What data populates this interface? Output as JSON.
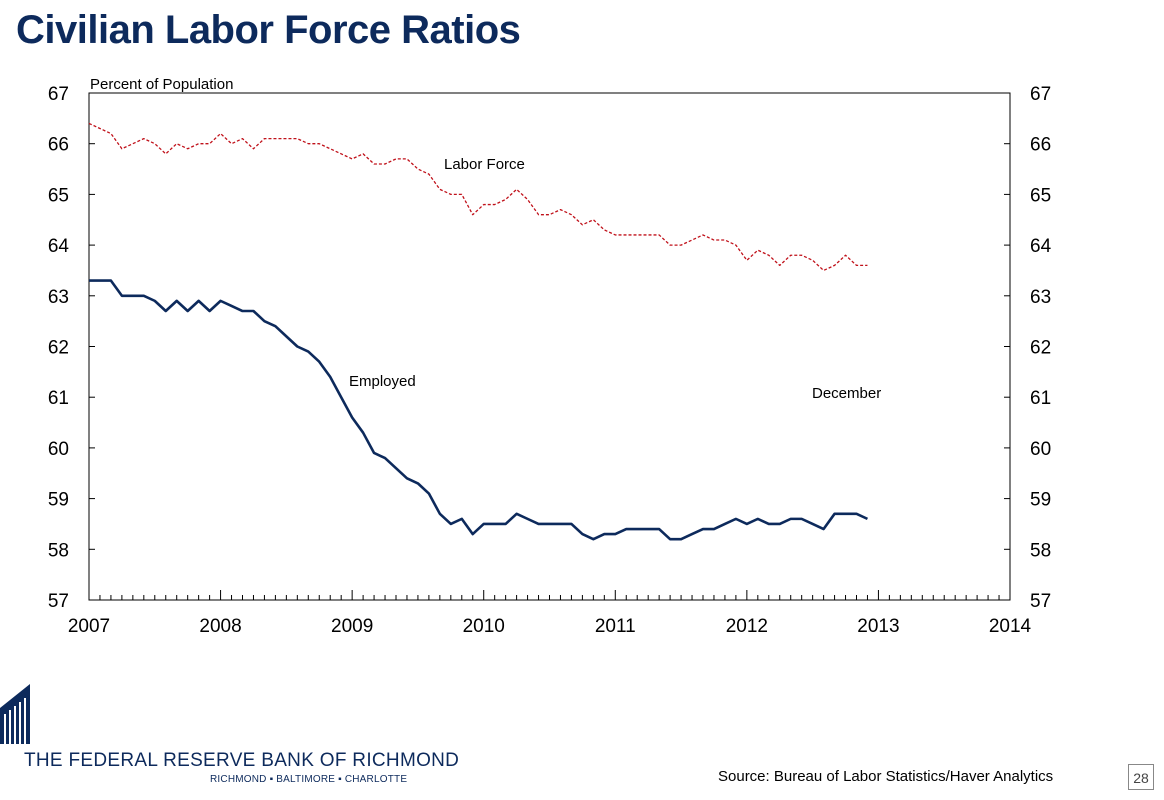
{
  "slide": {
    "title": "Civilian Labor Force Ratios",
    "source": "Source: Bureau of Labor Statistics/Haver Analytics",
    "page_number": "28",
    "logo": {
      "name": "THE FEDERAL RESERVE BANK OF RICHMOND",
      "cities": "RICHMOND ▪ BALTIMORE ▪ CHARLOTTE"
    }
  },
  "chart_data": {
    "type": "line",
    "title": "",
    "ylabel": "Percent of Population",
    "xlim": [
      2007,
      2014
    ],
    "ylim": [
      57,
      67
    ],
    "x_ticks": [
      "2007",
      "2008",
      "2009",
      "2010",
      "2011",
      "2012",
      "2013",
      "2014"
    ],
    "y_ticks": [
      "57",
      "58",
      "59",
      "60",
      "61",
      "62",
      "63",
      "64",
      "65",
      "66",
      "67"
    ],
    "annotations": {
      "labor_force": "Labor Force",
      "employed": "Employed",
      "december": "December"
    },
    "colors": {
      "labor_force": "#c0111a",
      "employed": "#0d2a5c",
      "title": "#0d2a5c"
    },
    "series": [
      {
        "key": "labor_force",
        "style": "dashed",
        "start": "2007-01",
        "frequency": "monthly",
        "values": [
          66.4,
          66.3,
          66.2,
          65.9,
          66.0,
          66.1,
          66.0,
          65.8,
          66.0,
          65.9,
          66.0,
          66.0,
          66.2,
          66.0,
          66.1,
          65.9,
          66.1,
          66.1,
          66.1,
          66.1,
          66.0,
          66.0,
          65.9,
          65.8,
          65.7,
          65.8,
          65.6,
          65.6,
          65.7,
          65.7,
          65.5,
          65.4,
          65.1,
          65.0,
          65.0,
          64.6,
          64.8,
          64.8,
          64.9,
          65.1,
          64.9,
          64.6,
          64.6,
          64.7,
          64.6,
          64.4,
          64.5,
          64.3,
          64.2,
          64.2,
          64.2,
          64.2,
          64.2,
          64.0,
          64.0,
          64.1,
          64.2,
          64.1,
          64.1,
          64.0,
          63.7,
          63.9,
          63.8,
          63.6,
          63.8,
          63.8,
          63.7,
          63.5,
          63.6,
          63.8,
          63.6,
          63.6
        ]
      },
      {
        "key": "employed",
        "style": "solid",
        "start": "2007-01",
        "frequency": "monthly",
        "values": [
          63.3,
          63.3,
          63.3,
          63.0,
          63.0,
          63.0,
          62.9,
          62.7,
          62.9,
          62.7,
          62.9,
          62.7,
          62.9,
          62.8,
          62.7,
          62.7,
          62.5,
          62.4,
          62.2,
          62.0,
          61.9,
          61.7,
          61.4,
          61.0,
          60.6,
          60.3,
          59.9,
          59.8,
          59.6,
          59.4,
          59.3,
          59.1,
          58.7,
          58.5,
          58.6,
          58.3,
          58.5,
          58.5,
          58.5,
          58.7,
          58.6,
          58.5,
          58.5,
          58.5,
          58.5,
          58.3,
          58.2,
          58.3,
          58.3,
          58.4,
          58.4,
          58.4,
          58.4,
          58.2,
          58.2,
          58.3,
          58.4,
          58.4,
          58.5,
          58.6,
          58.5,
          58.6,
          58.5,
          58.5,
          58.6,
          58.6,
          58.5,
          58.4,
          58.7,
          58.7,
          58.7,
          58.6
        ]
      }
    ]
  }
}
